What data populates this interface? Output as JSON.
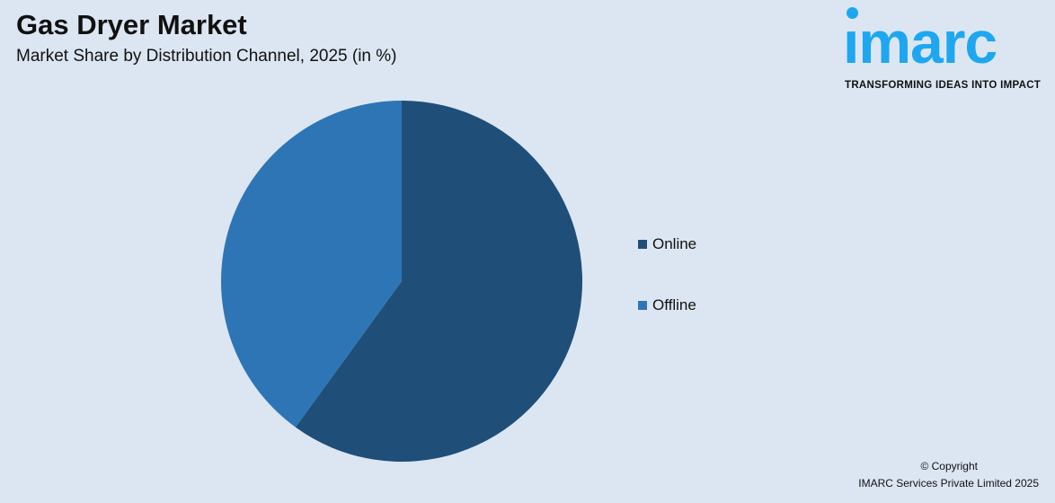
{
  "header": {
    "title": "Gas Dryer Market",
    "subtitle": "Market Share by Distribution Channel, 2025 (in %)"
  },
  "logo": {
    "wordmark": "imarc",
    "tagline": "TRANSFORMING IDEAS INTO IMPACT",
    "color": "#1ea7f0"
  },
  "chart_data": {
    "type": "pie",
    "title": "Gas Dryer Market",
    "subtitle": "Market Share by Distribution Channel, 2025 (in %)",
    "categories": [
      "Online",
      "Offline"
    ],
    "values": [
      60,
      40
    ],
    "colors": [
      "#1f4e79",
      "#2e75b6"
    ],
    "start_angle": "12 o'clock, clockwise",
    "legend_position": "right"
  },
  "footer": {
    "copyright": "© Copyright",
    "company": "IMARC Services Private Limited 2025"
  }
}
